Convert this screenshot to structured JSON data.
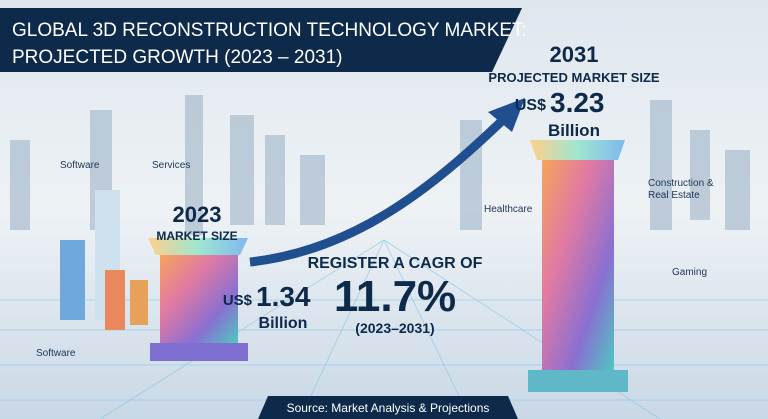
{
  "header": {
    "title_lines": [
      "GLOBAL 3D RECONSTRUCTION TECHNOLOGY MARKET:",
      "PROJECTED GROWTH (2023 – 2031)"
    ]
  },
  "milestones": [
    {
      "year": "2023",
      "caption": "MARKET SIZE",
      "currency": "US$",
      "amount": "1.34",
      "unit": "Billion"
    },
    {
      "year": "2031",
      "caption": "PROJECTED MARKET SIZE",
      "currency": "US$",
      "amount": "3.23",
      "unit": "Billion"
    }
  ],
  "cagr": {
    "lead": "REGISTER A CAGR OF",
    "value": "11.7%",
    "period": "(2023–2031)"
  },
  "segments": [
    "Software",
    "Services",
    "Healthcare",
    "Construction & Real Estate",
    "Gaming",
    "Software"
  ],
  "footer": {
    "source": "Source: Market Analysis & Projections"
  }
}
